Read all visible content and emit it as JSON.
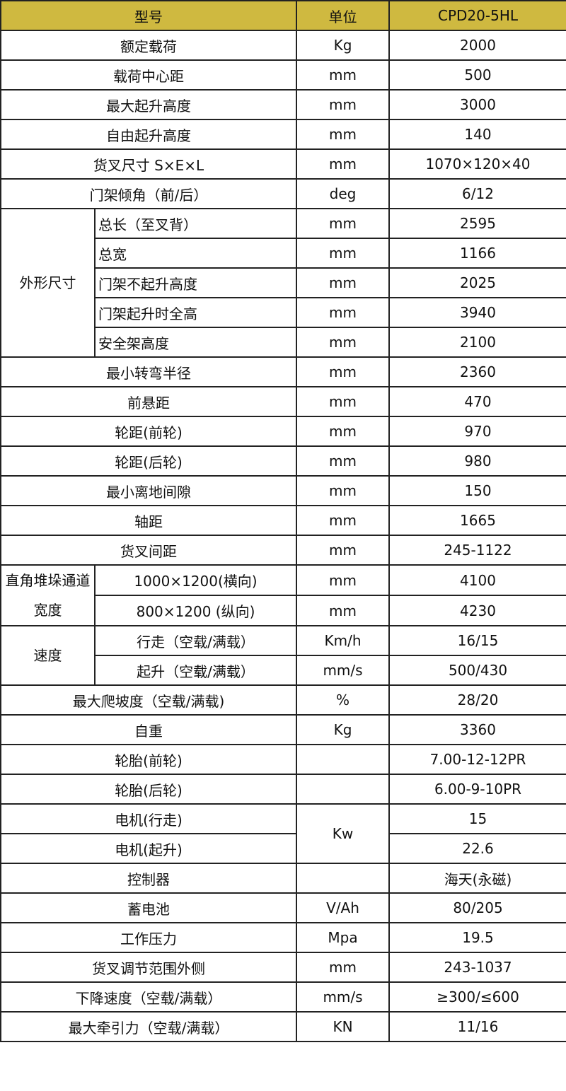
{
  "colors": {
    "header_bg": "#cfb940",
    "border": "#222222"
  },
  "header": {
    "model": "型号",
    "unit": "单位",
    "value": "CPD20-5HL"
  },
  "rows": [
    {
      "label": "额定载荷",
      "unit": "Kg",
      "value": "2000"
    },
    {
      "label": "载荷中心距",
      "unit": "mm",
      "value": "500"
    },
    {
      "label": "最大起升高度",
      "unit": "mm",
      "value": "3000"
    },
    {
      "label": "自由起升高度",
      "unit": "mm",
      "value": "140"
    },
    {
      "label": "货叉尺寸 S×E×L",
      "unit": "mm",
      "value": "1070×120×40"
    },
    {
      "label": "门架倾角（前/后）",
      "unit": "deg",
      "value": "6/12"
    },
    {
      "group": "外形尺寸",
      "label": "总长（至叉背）",
      "unit": "mm",
      "value": "2595"
    },
    {
      "group": "外形尺寸",
      "label": "总宽",
      "unit": "mm",
      "value": "1166"
    },
    {
      "group": "外形尺寸",
      "label": "门架不起升高度",
      "unit": "mm",
      "value": "2025"
    },
    {
      "group": "外形尺寸",
      "label": "门架起升时全高",
      "unit": "mm",
      "value": "3940"
    },
    {
      "group": "外形尺寸",
      "label": "安全架高度",
      "unit": "mm",
      "value": "2100"
    },
    {
      "label": "最小转弯半径",
      "unit": "mm",
      "value": "2360"
    },
    {
      "label": "前悬距",
      "unit": "mm",
      "value": "470"
    },
    {
      "label": "轮距(前轮)",
      "unit": "mm",
      "value": "970"
    },
    {
      "label": "轮距(后轮)",
      "unit": "mm",
      "value": "980"
    },
    {
      "label": "最小离地间隙",
      "unit": "mm",
      "value": "150"
    },
    {
      "label": "轴距",
      "unit": "mm",
      "value": "1665"
    },
    {
      "label": "货叉间距",
      "unit": "mm",
      "value": "245-1122"
    },
    {
      "group": "直角堆垛通道宽度",
      "label": "1000×1200(横向)",
      "unit": "mm",
      "value": "4100"
    },
    {
      "group": "直角堆垛通道宽度",
      "label": "800×1200 (纵向)",
      "unit": "mm",
      "value": "4230"
    },
    {
      "group": "速度",
      "label": "行走（空载/满载）",
      "unit": "Km/h",
      "value": "16/15"
    },
    {
      "group": "速度",
      "label": "起升（空载/满载）",
      "unit": "mm/s",
      "value": "500/430"
    },
    {
      "label": "最大爬坡度（空载/满载)",
      "unit": "%",
      "value": "28/20"
    },
    {
      "label": "自重",
      "unit": "Kg",
      "value": "3360"
    },
    {
      "label": "轮胎(前轮)",
      "unit": "",
      "value": "7.00-12-12PR"
    },
    {
      "label": "轮胎(后轮)",
      "unit": "",
      "value": "6.00-9-10PR"
    },
    {
      "label": "电机(行走)",
      "unit": "Kw",
      "unit_span": 2,
      "value": "15"
    },
    {
      "label": "电机(起升)",
      "unit_merged": true,
      "value": "22.6"
    },
    {
      "label": "控制器",
      "unit": "",
      "value": "海天(永磁)"
    },
    {
      "label": "蓄电池",
      "unit": "V/Ah",
      "value": "80/205"
    },
    {
      "label": "工作压力",
      "unit": "Mpa",
      "value": "19.5"
    },
    {
      "label": "货叉调节范围外侧",
      "unit": "mm",
      "value": "243-1037"
    },
    {
      "label": "下降速度（空载/满载）",
      "unit": "mm/s",
      "value": "≥300/≤600"
    },
    {
      "label": "最大牵引力（空载/满载）",
      "unit": "KN",
      "value": "11/16"
    }
  ]
}
